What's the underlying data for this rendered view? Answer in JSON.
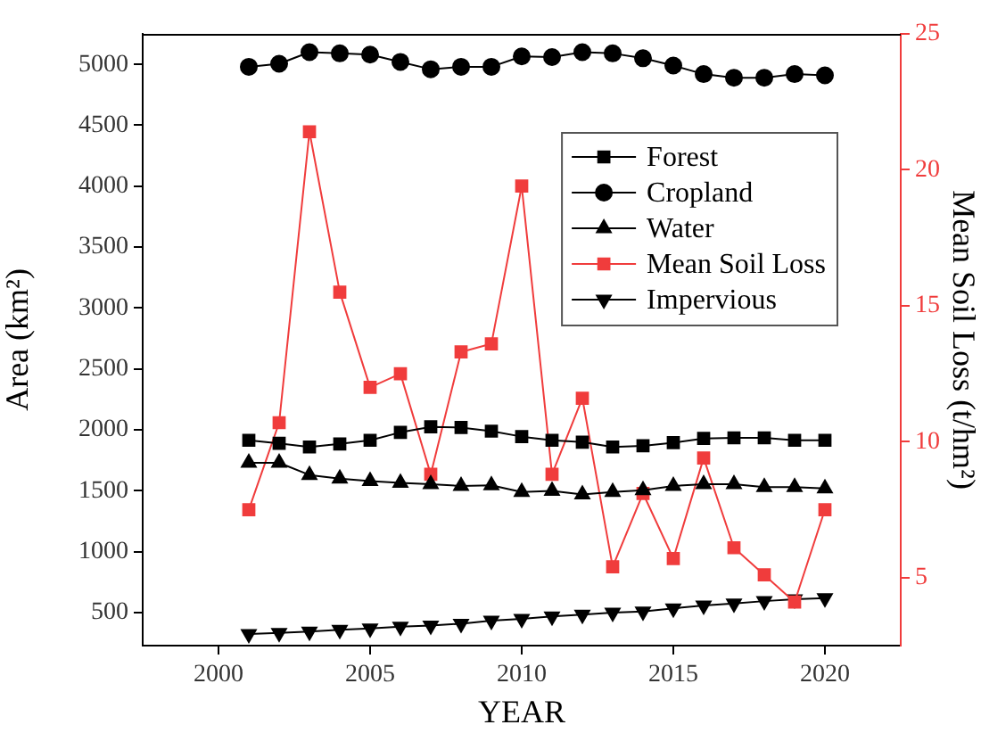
{
  "chart_data": {
    "type": "line",
    "xlabel": "YEAR",
    "ylabel": "Area (km²)",
    "y2label": "Mean Soil Loss (t/hm²)",
    "x": [
      2001,
      2002,
      2003,
      2004,
      2005,
      2006,
      2007,
      2008,
      2009,
      2010,
      2011,
      2012,
      2013,
      2014,
      2015,
      2016,
      2017,
      2018,
      2019,
      2020
    ],
    "xlim": [
      1997.5,
      2022.5
    ],
    "xticks": [
      2000,
      2005,
      2010,
      2015,
      2020
    ],
    "ylim": [
      230,
      5250
    ],
    "yticks": [
      500,
      1000,
      1500,
      2000,
      2500,
      3000,
      3500,
      4000,
      4500,
      5000
    ],
    "y2lim": [
      2.5,
      25
    ],
    "y2ticks": [
      5,
      10,
      15,
      20,
      25
    ],
    "grid": false,
    "legend": "top right",
    "line_style": "solid",
    "series": [
      {
        "name": "Forest",
        "color": "#000000",
        "marker": "square",
        "values": [
          1915,
          1890,
          1860,
          1885,
          1915,
          1980,
          2025,
          2020,
          1990,
          1945,
          1915,
          1900,
          1860,
          1870,
          1895,
          1930,
          1935,
          1935,
          1915,
          1915
        ]
      },
      {
        "name": "Cropland",
        "color": "#000000",
        "marker": "circle",
        "values": [
          4980,
          5005,
          5100,
          5090,
          5080,
          5020,
          4960,
          4980,
          4980,
          5065,
          5060,
          5100,
          5090,
          5050,
          4990,
          4920,
          4890,
          4890,
          4920,
          4910
        ]
      },
      {
        "name": "Water",
        "color": "#000000",
        "marker": "triangle",
        "values": [
          1730,
          1730,
          1630,
          1600,
          1580,
          1565,
          1555,
          1540,
          1545,
          1490,
          1500,
          1470,
          1490,
          1505,
          1540,
          1555,
          1555,
          1530,
          1530,
          1520
        ]
      },
      {
        "name": "Mean Soil Loss",
        "color": "#f03c3c",
        "marker": "square",
        "axis": "y2",
        "values": [
          7.5,
          10.7,
          21.4,
          15.5,
          12.0,
          12.5,
          8.8,
          13.3,
          13.6,
          19.4,
          8.8,
          11.6,
          5.4,
          8.1,
          5.7,
          9.4,
          6.1,
          5.1,
          4.1,
          7.5
        ]
      },
      {
        "name": "Impervious",
        "color": "#000000",
        "marker": "triangle-down",
        "values": [
          325,
          335,
          345,
          360,
          370,
          385,
          395,
          410,
          435,
          450,
          470,
          485,
          500,
          510,
          535,
          560,
          575,
          595,
          610,
          620
        ]
      }
    ]
  }
}
